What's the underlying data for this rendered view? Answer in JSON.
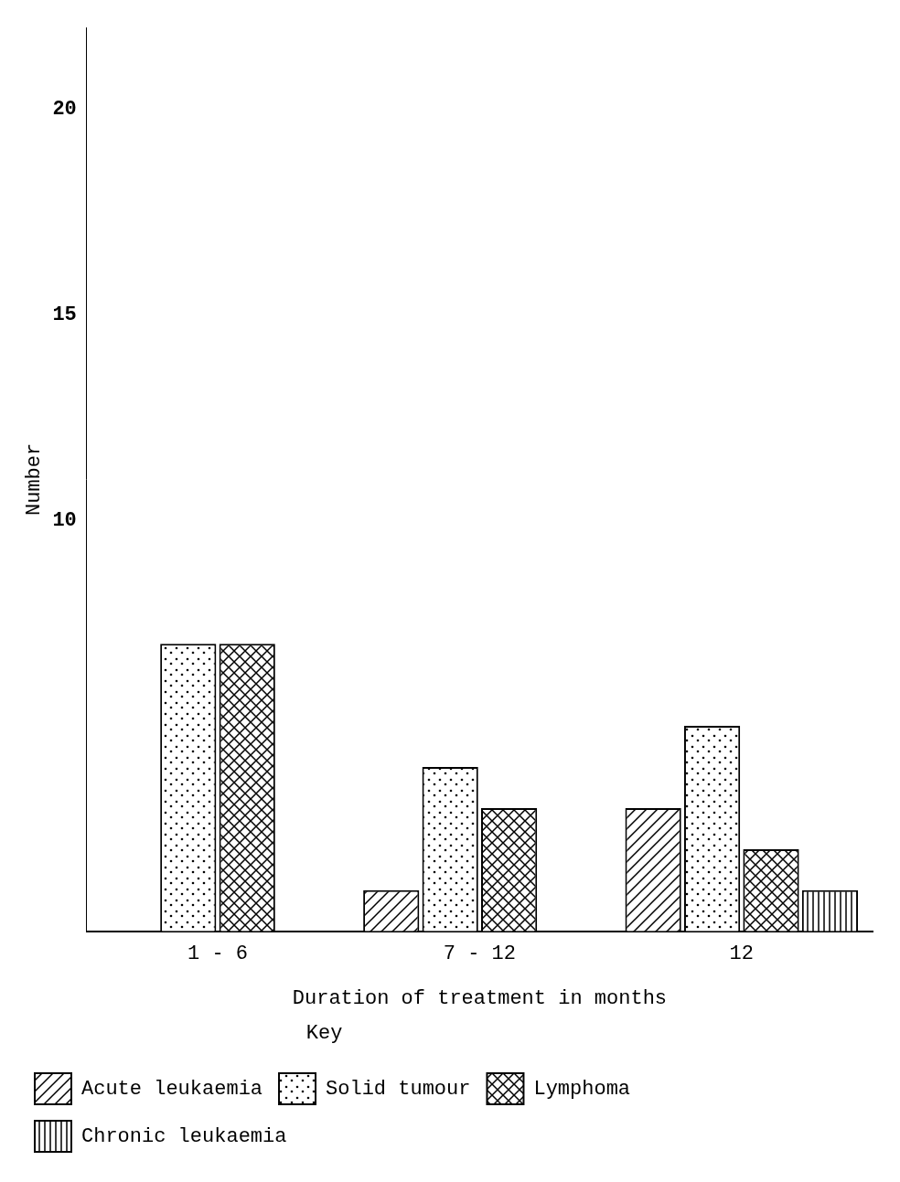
{
  "chart_data": {
    "type": "bar",
    "x_label": "Duration of treatment in months",
    "y_label": "Number",
    "legend_title": "Key",
    "categories": [
      "1 - 6",
      "7 - 12",
      "12"
    ],
    "series": [
      {
        "name": "Acute leukaemia",
        "color": "#000000",
        "values": [
          null,
          1,
          3
        ]
      },
      {
        "name": "Solid tumour",
        "color": "#000000",
        "values": [
          7,
          4,
          5
        ]
      },
      {
        "name": "Lymphoma",
        "color": "#000000",
        "values": [
          7,
          3,
          2
        ]
      },
      {
        "name": "Chronic leukaemia",
        "color": "#000000",
        "values": [
          null,
          null,
          1
        ]
      }
    ],
    "ylim": [
      0,
      22
    ],
    "yticks": [
      10,
      15,
      20
    ],
    "grid": false,
    "legend": "bottom"
  }
}
